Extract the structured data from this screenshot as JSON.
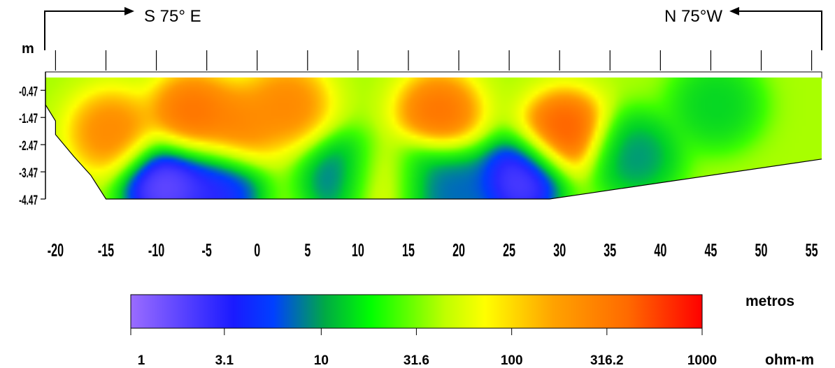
{
  "header": {
    "direction_left": "S 75° E",
    "direction_right": "N 75°W",
    "y_unit": "m"
  },
  "chart_data": {
    "type": "heatmap",
    "title": "",
    "xlabel": "metros",
    "ylabel": "m",
    "xlim": [
      -21,
      56
    ],
    "ylim": [
      -4.47,
      0
    ],
    "x_ticks": [
      -20,
      -15,
      -10,
      -5,
      0,
      5,
      10,
      15,
      20,
      25,
      30,
      35,
      40,
      45,
      50,
      55
    ],
    "x_tick_labels": [
      "-20",
      "-15",
      "-10",
      "-5",
      "0",
      "5",
      "10",
      "15",
      "20",
      "25",
      "30",
      "35",
      "40",
      "45",
      "50",
      "55"
    ],
    "y_ticks": [
      -0.47,
      -1.47,
      -2.47,
      -3.47,
      -4.47
    ],
    "y_tick_labels": [
      "-0.47",
      "-1.47",
      "-2.47",
      "-3.47",
      "-4.47"
    ],
    "colorbar": {
      "label": "ohm-m",
      "scale": "log",
      "range": [
        1,
        1000
      ],
      "ticks": [
        1,
        3.1,
        10,
        31.6,
        100,
        316.2,
        1000
      ],
      "tick_labels": [
        "1",
        "3.1",
        "10",
        "31.6",
        "100",
        "316.2",
        "1000"
      ],
      "colors": [
        "#9966ff",
        "#0000ff",
        "#00ff00",
        "#ffff00",
        "#ff8800",
        "#ff0000"
      ]
    },
    "background_log_resistivity": 1.55,
    "anomalies": [
      {
        "x": -14.5,
        "depth": -2.0,
        "log_resistivity": 2.3
      },
      {
        "x": -6.5,
        "depth": -1.3,
        "log_resistivity": 2.4
      },
      {
        "x": -2.0,
        "depth": -1.8,
        "log_resistivity": 2.3
      },
      {
        "x": 3.0,
        "depth": -1.0,
        "log_resistivity": 2.3
      },
      {
        "x": 18.0,
        "depth": -1.3,
        "log_resistivity": 2.4
      },
      {
        "x": 30.5,
        "depth": -2.0,
        "log_resistivity": 2.5
      },
      {
        "x": -9.0,
        "depth": -4.0,
        "log_resistivity": 0.0
      },
      {
        "x": -4.0,
        "depth": -4.2,
        "log_resistivity": 0.3
      },
      {
        "x": 9.0,
        "depth": -3.8,
        "log_resistivity": 0.5
      },
      {
        "x": 16.0,
        "depth": -4.0,
        "log_resistivity": 0.6
      },
      {
        "x": 20.0,
        "depth": -4.2,
        "log_resistivity": 0.6
      },
      {
        "x": 26.0,
        "depth": -3.8,
        "log_resistivity": 0.1
      },
      {
        "x": 37.5,
        "depth": -2.9,
        "log_resistivity": 0.7
      },
      {
        "x": 45.5,
        "depth": -1.0,
        "log_resistivity": 0.9
      },
      {
        "x": 12.5,
        "depth": -4.0,
        "log_resistivity": 2.3
      }
    ]
  }
}
